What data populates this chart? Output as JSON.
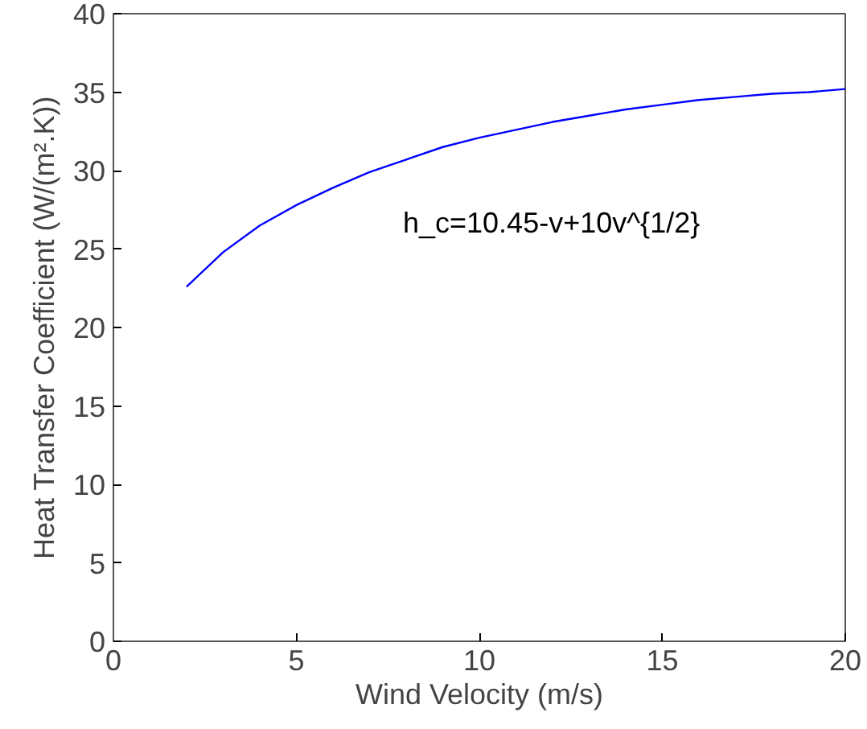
{
  "chart_data": {
    "type": "line",
    "xlabel": "Wind Velocity (m/s)",
    "ylabel": "Heat Transfer Coefficient (W/(m².K))",
    "x": [
      2,
      3,
      4,
      5,
      6,
      7,
      8,
      9,
      10,
      11,
      12,
      13,
      14,
      15,
      16,
      17,
      18,
      19,
      20
    ],
    "series": [
      {
        "color": "#0000ff",
        "values": [
          22.6,
          24.8,
          26.5,
          27.8,
          28.9,
          29.9,
          30.7,
          31.5,
          32.1,
          32.6,
          33.1,
          33.5,
          33.9,
          34.2,
          34.5,
          34.7,
          34.9,
          35.0,
          35.2
        ]
      }
    ],
    "xlim": [
      0,
      20
    ],
    "ylim": [
      0,
      40
    ],
    "xticks": [
      0,
      5,
      10,
      15,
      20
    ],
    "yticks": [
      0,
      5,
      10,
      15,
      20,
      25,
      30,
      35,
      40
    ],
    "annotations": [
      "h_c=10.45-v+10v^{1/2}"
    ],
    "grid": false,
    "marker": "none",
    "line_style": "solid"
  }
}
